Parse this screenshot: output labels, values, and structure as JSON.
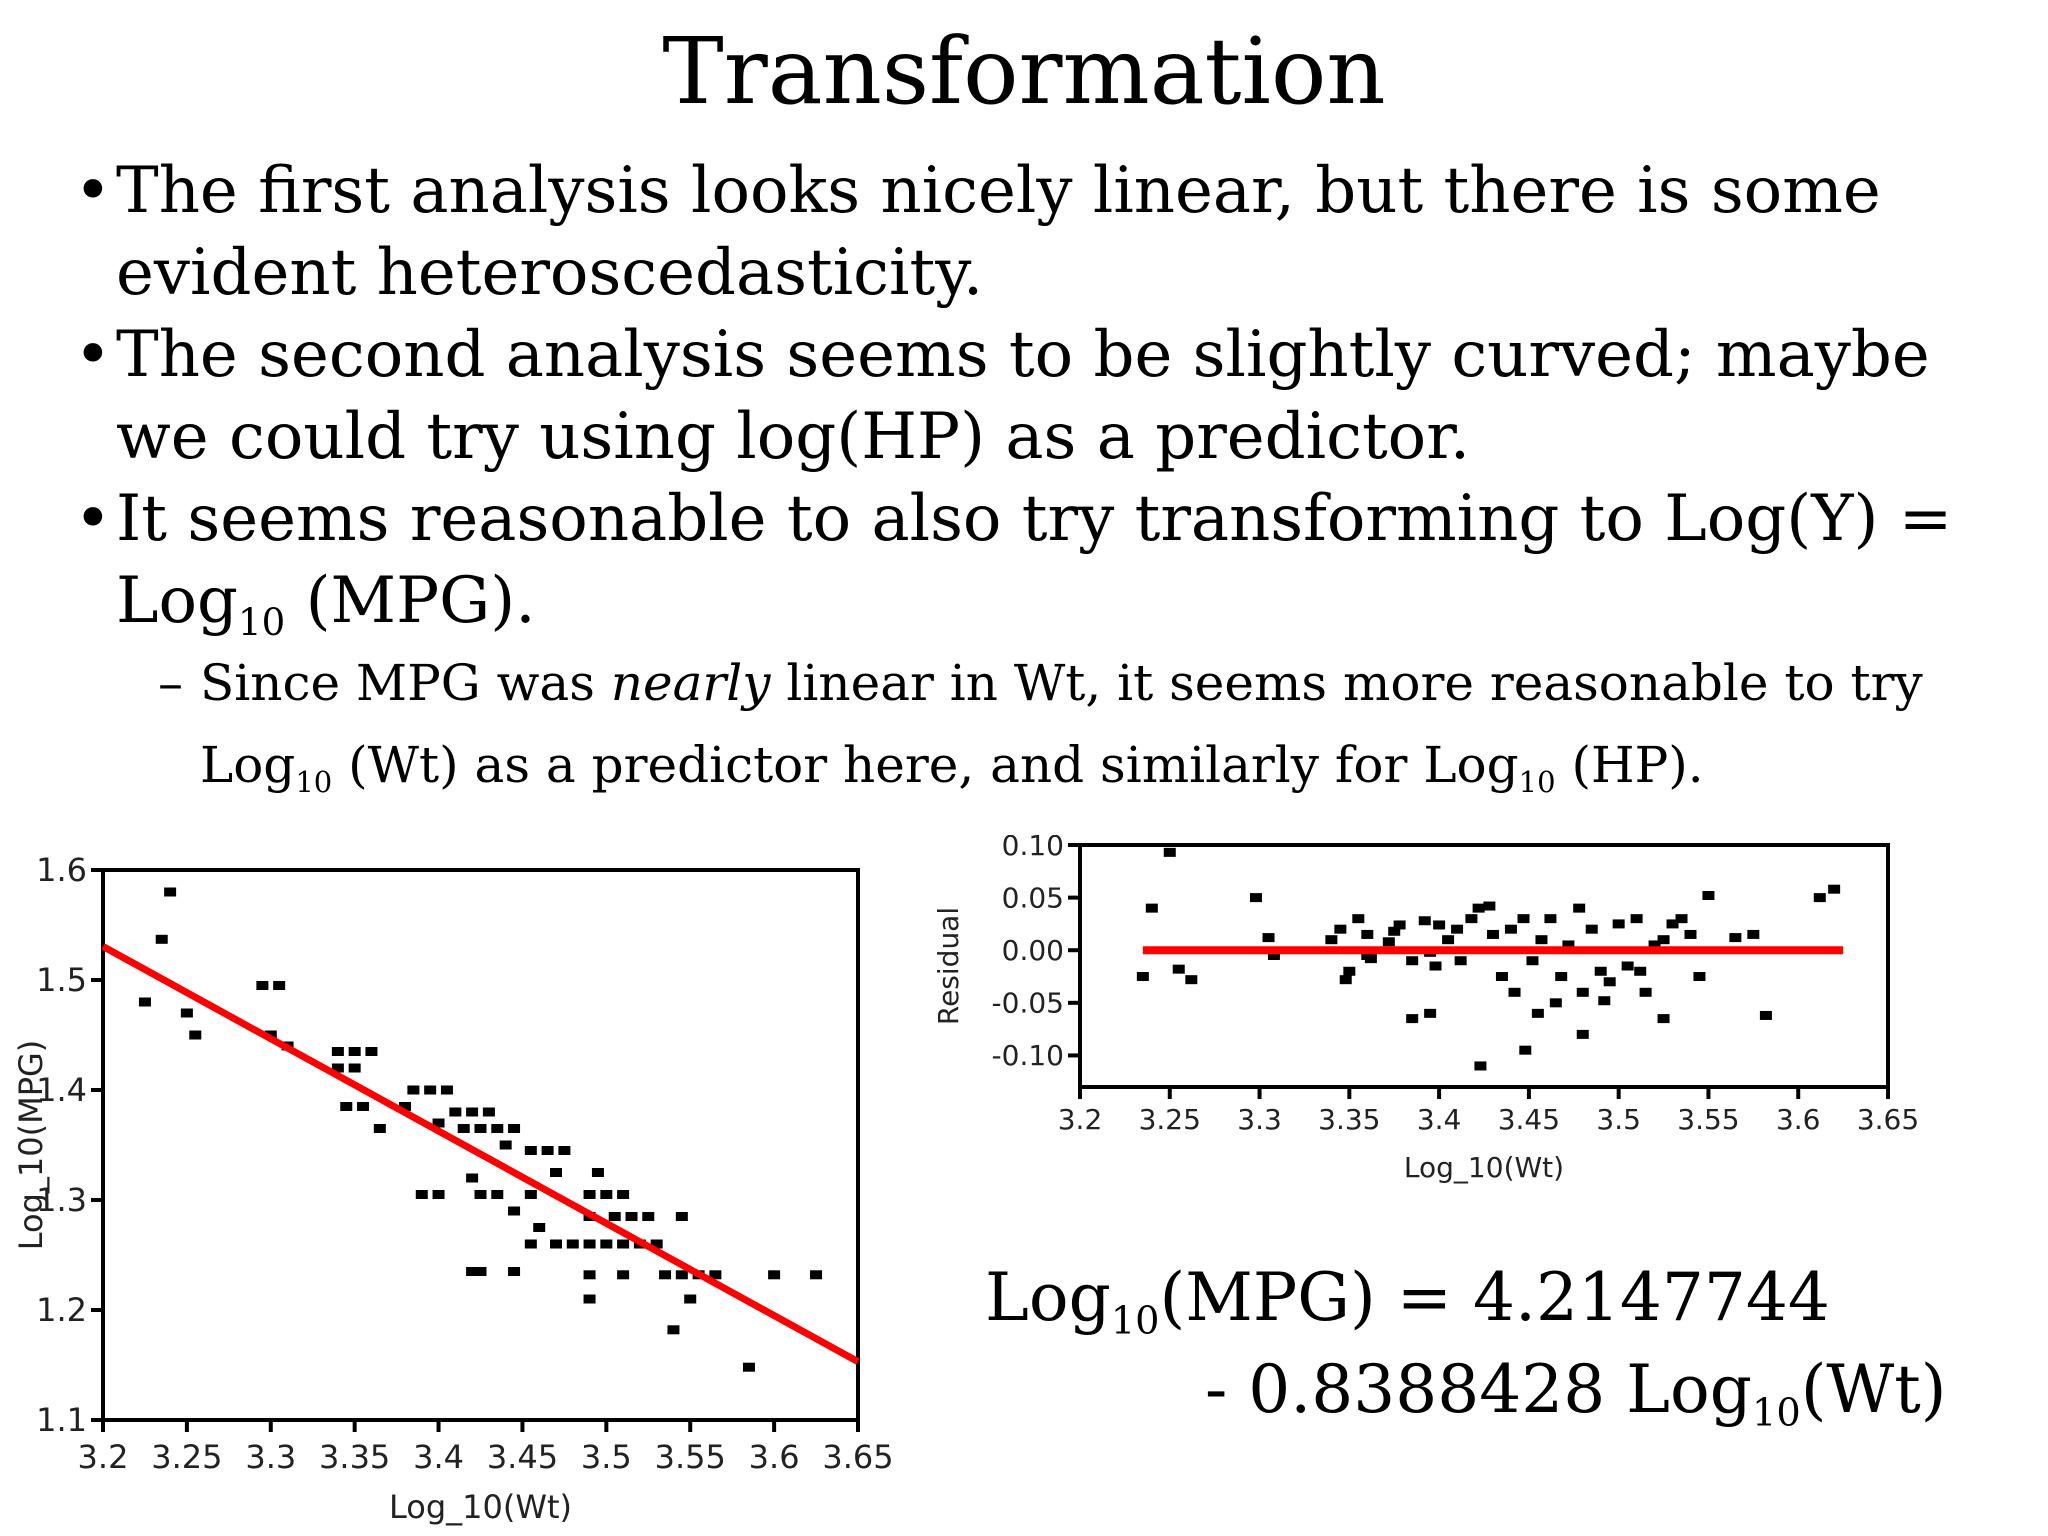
{
  "slide": {
    "title": "Transformation",
    "bullet1": "The first analysis looks nicely linear, but there is some evident heteroscedasticity.",
    "bullet2": "The second analysis seems to be slightly curved; maybe we could try using log(HP) as a predictor.",
    "bullet3_a": "It seems reasonable to also try transforming to Log(Y) = Log",
    "bullet3_sub": "10",
    "bullet3_b": " (MPG).",
    "sub1_a": "Since MPG was ",
    "sub1_em": "nearly",
    "sub1_b": " linear in Wt, it seems more reasonable to try Log",
    "sub1_sub": "10",
    "sub1_c": " (Wt) as a predictor here, and similarly for Log",
    "sub1_sub2": "10",
    "sub1_d": " (HP).",
    "eq_l1_a": "Log",
    "eq_l1_sub": "10",
    "eq_l1_b": "(MPG) = 4.2147744",
    "eq_l2_a": "- 0.8388428 Log",
    "eq_l2_sub": "10",
    "eq_l2_b": "(Wt)"
  },
  "colors": {
    "fit_line": "#ff0000",
    "points": "#000000"
  },
  "chart_data": [
    {
      "type": "scatter",
      "xlabel": "Log_10(Wt)",
      "ylabel": "Log_10(MPG)",
      "xlim": [
        3.2,
        3.65
      ],
      "ylim": [
        1.1,
        1.6
      ],
      "xticks": [
        "3.2",
        "3.25",
        "3.3",
        "3.35",
        "3.4",
        "3.45",
        "3.5",
        "3.55",
        "3.6",
        "3.65"
      ],
      "yticks": [
        "1.1",
        "1.2",
        "1.3",
        "1.4",
        "1.5",
        "1.6"
      ],
      "fit_line": {
        "intercept": 4.2147744,
        "slope": -0.8388428,
        "x": [
          3.2,
          3.65
        ]
      },
      "points": [
        [
          3.24,
          1.58
        ],
        [
          3.235,
          1.537
        ],
        [
          3.225,
          1.48
        ],
        [
          3.25,
          1.47
        ],
        [
          3.255,
          1.45
        ],
        [
          3.295,
          1.495
        ],
        [
          3.305,
          1.495
        ],
        [
          3.3,
          1.45
        ],
        [
          3.31,
          1.44
        ],
        [
          3.34,
          1.435
        ],
        [
          3.35,
          1.435
        ],
        [
          3.36,
          1.435
        ],
        [
          3.34,
          1.42
        ],
        [
          3.35,
          1.42
        ],
        [
          3.345,
          1.385
        ],
        [
          3.355,
          1.385
        ],
        [
          3.365,
          1.365
        ],
        [
          3.38,
          1.385
        ],
        [
          3.385,
          1.4
        ],
        [
          3.395,
          1.4
        ],
        [
          3.405,
          1.4
        ],
        [
          3.4,
          1.37
        ],
        [
          3.41,
          1.38
        ],
        [
          3.42,
          1.38
        ],
        [
          3.43,
          1.38
        ],
        [
          3.415,
          1.365
        ],
        [
          3.425,
          1.365
        ],
        [
          3.435,
          1.365
        ],
        [
          3.445,
          1.365
        ],
        [
          3.44,
          1.35
        ],
        [
          3.455,
          1.345
        ],
        [
          3.465,
          1.345
        ],
        [
          3.475,
          1.345
        ],
        [
          3.47,
          1.325
        ],
        [
          3.495,
          1.325
        ],
        [
          3.39,
          1.305
        ],
        [
          3.4,
          1.305
        ],
        [
          3.42,
          1.32
        ],
        [
          3.425,
          1.305
        ],
        [
          3.435,
          1.305
        ],
        [
          3.445,
          1.29
        ],
        [
          3.455,
          1.305
        ],
        [
          3.49,
          1.305
        ],
        [
          3.5,
          1.305
        ],
        [
          3.51,
          1.305
        ],
        [
          3.46,
          1.275
        ],
        [
          3.49,
          1.285
        ],
        [
          3.505,
          1.285
        ],
        [
          3.515,
          1.285
        ],
        [
          3.525,
          1.285
        ],
        [
          3.545,
          1.285
        ],
        [
          3.48,
          1.26
        ],
        [
          3.49,
          1.26
        ],
        [
          3.5,
          1.26
        ],
        [
          3.51,
          1.26
        ],
        [
          3.52,
          1.26
        ],
        [
          3.53,
          1.26
        ],
        [
          3.455,
          1.26
        ],
        [
          3.47,
          1.26
        ],
        [
          3.42,
          1.235
        ],
        [
          3.425,
          1.235
        ],
        [
          3.445,
          1.235
        ],
        [
          3.49,
          1.232
        ],
        [
          3.51,
          1.232
        ],
        [
          3.535,
          1.232
        ],
        [
          3.545,
          1.232
        ],
        [
          3.555,
          1.232
        ],
        [
          3.565,
          1.232
        ],
        [
          3.6,
          1.232
        ],
        [
          3.625,
          1.232
        ],
        [
          3.49,
          1.21
        ],
        [
          3.55,
          1.21
        ],
        [
          3.54,
          1.182
        ],
        [
          3.585,
          1.148
        ]
      ]
    },
    {
      "type": "scatter",
      "xlabel": "Log_10(Wt)",
      "ylabel": "Residual",
      "xlim": [
        3.2,
        3.65
      ],
      "ylim": [
        -0.13,
        0.1
      ],
      "xticks": [
        "3.2",
        "3.25",
        "3.3",
        "3.35",
        "3.4",
        "3.45",
        "3.5",
        "3.55",
        "3.6",
        "3.65"
      ],
      "yticks": [
        "-0.10",
        "-0.05",
        "0.00",
        "0.05",
        "0.10"
      ],
      "zero_line": {
        "y": 0,
        "x": [
          3.235,
          3.625
        ]
      },
      "points": [
        [
          3.235,
          -0.025
        ],
        [
          3.24,
          0.04
        ],
        [
          3.25,
          0.093
        ],
        [
          3.255,
          -0.018
        ],
        [
          3.262,
          -0.028
        ],
        [
          3.298,
          0.05
        ],
        [
          3.305,
          0.012
        ],
        [
          3.308,
          -0.005
        ],
        [
          3.34,
          0.01
        ],
        [
          3.345,
          0.02
        ],
        [
          3.35,
          -0.02
        ],
        [
          3.355,
          0.03
        ],
        [
          3.36,
          0.015
        ],
        [
          3.36,
          -0.005
        ],
        [
          3.362,
          -0.008
        ],
        [
          3.348,
          -0.028
        ],
        [
          3.372,
          0.008
        ],
        [
          3.375,
          0.018
        ],
        [
          3.378,
          0.024
        ],
        [
          3.385,
          -0.01
        ],
        [
          3.392,
          0.028
        ],
        [
          3.395,
          -0.002
        ],
        [
          3.398,
          -0.015
        ],
        [
          3.4,
          0.024
        ],
        [
          3.405,
          0.01
        ],
        [
          3.41,
          0.02
        ],
        [
          3.412,
          -0.01
        ],
        [
          3.418,
          0.03
        ],
        [
          3.422,
          0.04
        ],
        [
          3.428,
          0.042
        ],
        [
          3.43,
          0.015
        ],
        [
          3.435,
          -0.025
        ],
        [
          3.44,
          0.02
        ],
        [
          3.442,
          -0.04
        ],
        [
          3.447,
          0.03
        ],
        [
          3.452,
          -0.01
        ],
        [
          3.457,
          0.01
        ],
        [
          3.462,
          0.03
        ],
        [
          3.468,
          -0.025
        ],
        [
          3.472,
          0.005
        ],
        [
          3.478,
          0.04
        ],
        [
          3.48,
          -0.04
        ],
        [
          3.485,
          0.02
        ],
        [
          3.49,
          -0.02
        ],
        [
          3.495,
          -0.03
        ],
        [
          3.5,
          0.025
        ],
        [
          3.505,
          -0.015
        ],
        [
          3.51,
          0.03
        ],
        [
          3.515,
          -0.04
        ],
        [
          3.52,
          0.005
        ],
        [
          3.525,
          0.01
        ],
        [
          3.53,
          0.025
        ],
        [
          3.535,
          0.03
        ],
        [
          3.54,
          0.015
        ],
        [
          3.545,
          -0.025
        ],
        [
          3.55,
          0.052
        ],
        [
          3.565,
          0.012
        ],
        [
          3.575,
          0.015
        ],
        [
          3.582,
          -0.062
        ],
        [
          3.612,
          0.05
        ],
        [
          3.62,
          0.058
        ],
        [
          3.385,
          -0.065
        ],
        [
          3.395,
          -0.06
        ],
        [
          3.423,
          -0.11
        ],
        [
          3.448,
          -0.095
        ],
        [
          3.455,
          -0.06
        ],
        [
          3.465,
          -0.05
        ],
        [
          3.48,
          -0.08
        ],
        [
          3.492,
          -0.048
        ],
        [
          3.525,
          -0.065
        ],
        [
          3.512,
          -0.02
        ]
      ]
    }
  ]
}
